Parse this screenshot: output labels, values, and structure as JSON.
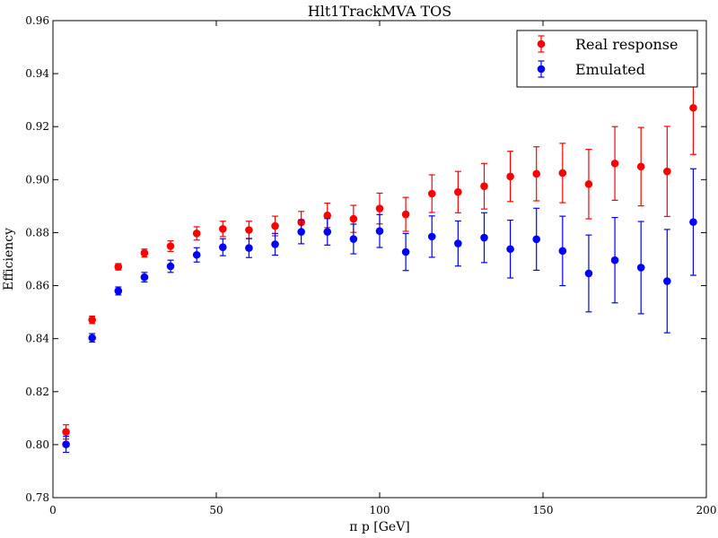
{
  "chart_data": {
    "type": "scatter",
    "title": "Hlt1TrackMVA TOS",
    "xlabel": "π p [GeV]",
    "ylabel": "Efficiency",
    "xlim": [
      0,
      200
    ],
    "ylim": [
      0.78,
      0.96
    ],
    "xticks": [
      0,
      50,
      100,
      150,
      200
    ],
    "yticks": [
      0.78,
      0.8,
      0.82,
      0.84,
      0.86,
      0.88,
      0.9,
      0.92,
      0.94,
      0.96
    ],
    "grid": false,
    "legend_position": "top-right",
    "x": [
      4,
      12,
      20,
      28,
      36,
      44,
      52,
      60,
      68,
      76,
      84,
      92,
      100,
      108,
      116,
      124,
      132,
      140,
      148,
      156,
      164,
      172,
      180,
      188,
      196
    ],
    "series": [
      {
        "name": "Real response",
        "color": "#ff0000",
        "values": [
          0.8048,
          0.8471,
          0.8671,
          0.8723,
          0.8749,
          0.8797,
          0.8814,
          0.881,
          0.8825,
          0.8839,
          0.8865,
          0.8852,
          0.8891,
          0.8869,
          0.8947,
          0.8953,
          0.8975,
          0.9012,
          0.9022,
          0.9025,
          0.8983,
          0.9061,
          0.9049,
          0.9031,
          0.9271
        ],
        "errors": [
          0.0027,
          0.0014,
          0.0012,
          0.0015,
          0.002,
          0.0025,
          0.0029,
          0.0033,
          0.0037,
          0.0041,
          0.0046,
          0.0051,
          0.0058,
          0.0064,
          0.0071,
          0.0078,
          0.0086,
          0.0095,
          0.0102,
          0.0112,
          0.0131,
          0.0139,
          0.0148,
          0.017,
          0.0176
        ]
      },
      {
        "name": "Emulated",
        "color": "#0000ff",
        "values": [
          0.8001,
          0.8403,
          0.858,
          0.8632,
          0.8673,
          0.8716,
          0.8745,
          0.8742,
          0.8756,
          0.8803,
          0.8803,
          0.8776,
          0.8806,
          0.8727,
          0.8785,
          0.8759,
          0.8781,
          0.8738,
          0.8775,
          0.8731,
          0.8646,
          0.8696,
          0.8668,
          0.8617,
          0.884
        ],
        "errors": [
          0.003,
          0.0016,
          0.0015,
          0.0018,
          0.0023,
          0.0027,
          0.0032,
          0.0036,
          0.0041,
          0.0045,
          0.005,
          0.0056,
          0.0062,
          0.007,
          0.0078,
          0.0085,
          0.0094,
          0.0109,
          0.0117,
          0.0131,
          0.0145,
          0.0161,
          0.0174,
          0.0195,
          0.0201
        ]
      }
    ]
  }
}
